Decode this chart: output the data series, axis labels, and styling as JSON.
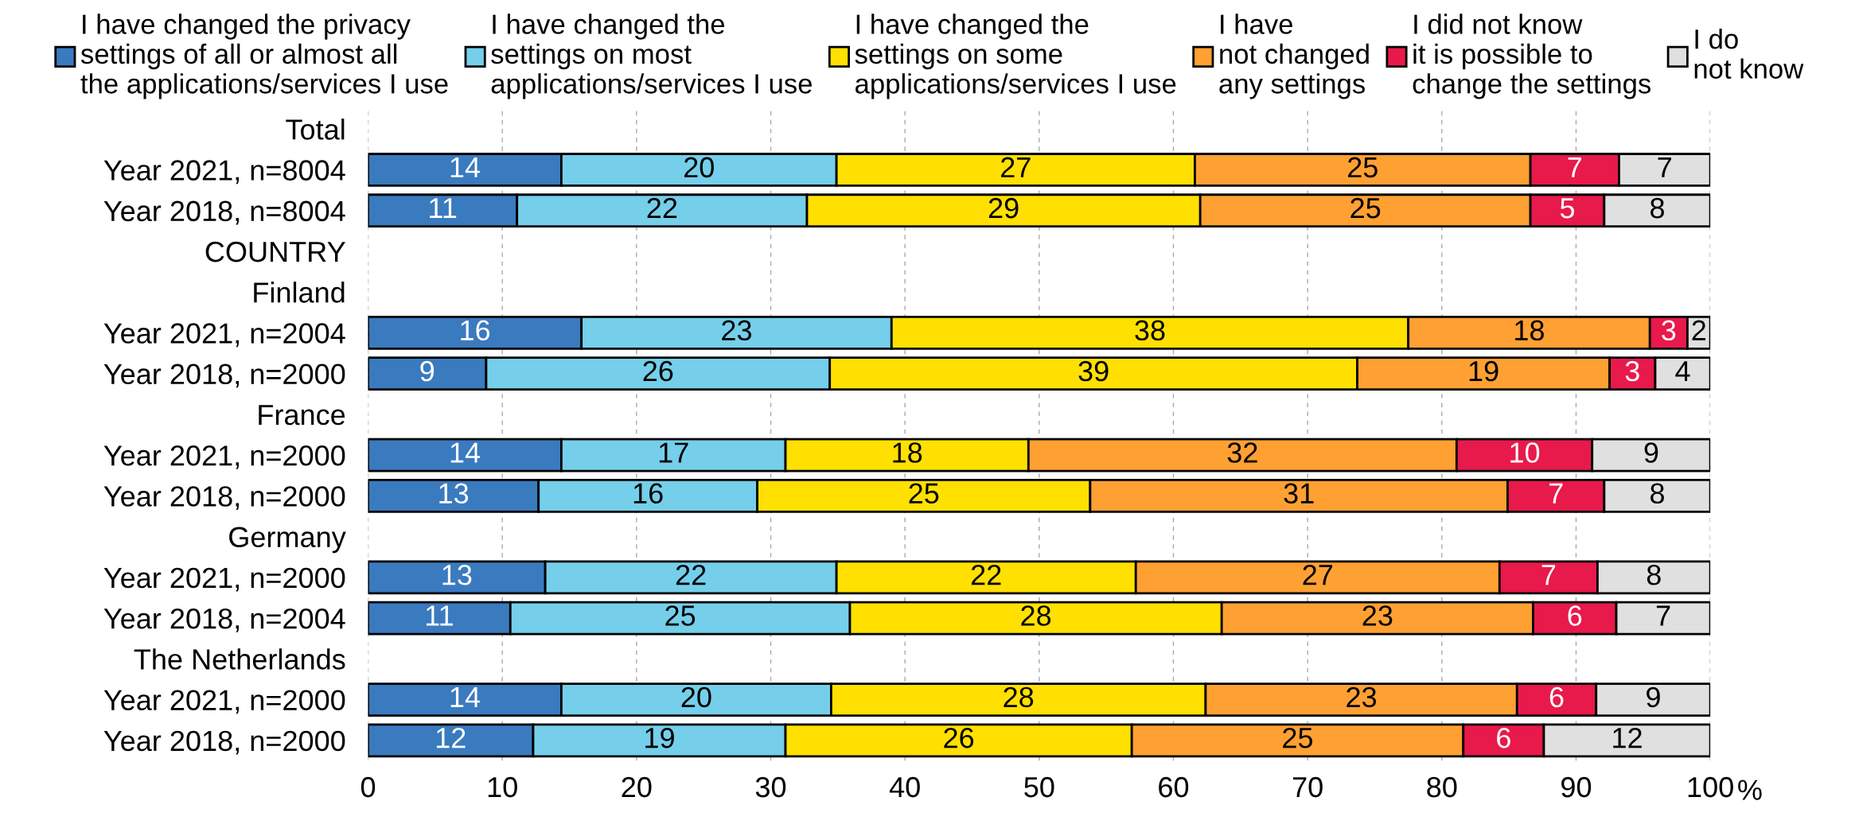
{
  "chart_data": {
    "type": "bar",
    "orientation": "horizontal",
    "stacked": true,
    "xlabel": "%",
    "categories": [
      "Total",
      "Year 2021, n=8004",
      "Year 2018, n=8004",
      "COUNTRY",
      "Finland",
      "Year 2021, n=2004",
      "Year 2018, n=2000",
      "France",
      "Year 2021, n=2000",
      "Year 2018, n=2000",
      "Germany",
      "Year 2021, n=2000",
      "Year 2018, n=2004",
      "The Netherlands",
      "Year 2021, n=2000",
      "Year 2018, n=2000"
    ],
    "series": [
      {
        "name": "I have changed the privacy\nsettings of all or almost all\nthe applications/services I use",
        "color": "#3a7abf",
        "values": [
          null,
          14.4,
          11.1,
          null,
          null,
          15.9,
          8.8,
          null,
          14.4,
          12.7,
          null,
          13.2,
          10.6,
          null,
          14.4,
          12.3
        ],
        "value_labels": [
          null,
          "14",
          "11",
          null,
          null,
          "16",
          "9",
          null,
          "14",
          "13",
          null,
          "13",
          "11",
          null,
          "14",
          "12"
        ]
      },
      {
        "name": "I have changed the\nsettings on most\napplications/services I use",
        "color": "#75cfea",
        "values": [
          null,
          20.5,
          21.6,
          null,
          null,
          23.1,
          25.6,
          null,
          16.7,
          16.3,
          null,
          21.7,
          25.3,
          null,
          20.1,
          18.8
        ],
        "value_labels": [
          null,
          "20",
          "22",
          null,
          null,
          "23",
          "26",
          null,
          "17",
          "16",
          null,
          "22",
          "25",
          null,
          "20",
          "19"
        ]
      },
      {
        "name": "I have changed the\nsettings on some\napplications/services I use",
        "color": "#ffe000",
        "values": [
          null,
          26.7,
          29.3,
          null,
          null,
          38.5,
          39.3,
          null,
          18.1,
          24.8,
          null,
          22.3,
          27.7,
          null,
          27.9,
          25.8
        ],
        "value_labels": [
          null,
          "27",
          "29",
          null,
          null,
          "38",
          "39",
          null,
          "18",
          "25",
          null,
          "22",
          "28",
          null,
          "28",
          "26"
        ]
      },
      {
        "name": "I have\nnot changed\nany settings",
        "color": "#ffa033",
        "values": [
          null,
          25.0,
          24.6,
          null,
          null,
          18.0,
          18.8,
          null,
          31.9,
          31.1,
          null,
          27.1,
          23.2,
          null,
          23.2,
          24.7
        ],
        "value_labels": [
          null,
          "25",
          "25",
          null,
          null,
          "18",
          "19",
          null,
          "32",
          "31",
          null,
          "27",
          "23",
          null,
          "23",
          "25"
        ]
      },
      {
        "name": "I did not know\nit is possible to\nchange the settings",
        "color": "#e8194b",
        "values": [
          null,
          6.6,
          5.5,
          null,
          null,
          2.8,
          3.4,
          null,
          10.1,
          7.2,
          null,
          7.3,
          6.2,
          null,
          5.9,
          6.0
        ],
        "value_labels": [
          null,
          "7",
          "5",
          null,
          null,
          "3",
          "3",
          null,
          "10",
          "7",
          null,
          "7",
          "6",
          null,
          "6",
          "6"
        ]
      },
      {
        "name": "I do\nnot know",
        "color": "#e0e0e0",
        "values": [
          null,
          6.8,
          7.9,
          null,
          null,
          1.7,
          4.1,
          null,
          8.8,
          7.9,
          null,
          8.4,
          7.0,
          null,
          8.5,
          12.4
        ],
        "value_labels": [
          null,
          "7",
          "8",
          null,
          null,
          "2",
          "4",
          null,
          "9",
          "8",
          null,
          "8",
          "7",
          null,
          "9",
          "12"
        ]
      }
    ],
    "xlim": [
      0,
      100
    ],
    "xticks": [
      0,
      10,
      20,
      30,
      40,
      50,
      60,
      70,
      80,
      90,
      100
    ],
    "grid": "x",
    "legend": "top"
  }
}
